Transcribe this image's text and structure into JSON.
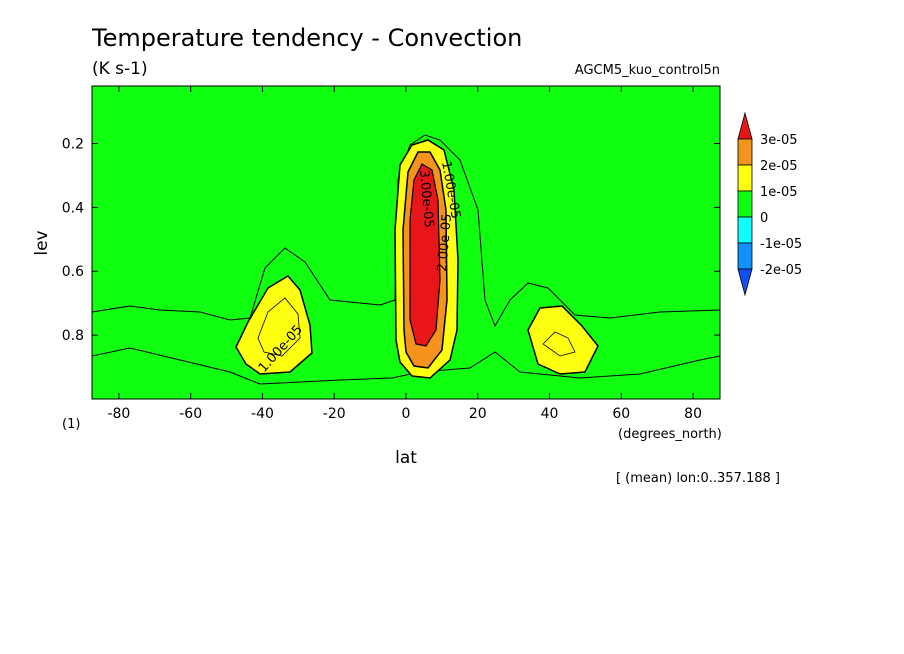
{
  "header": {
    "title": "Temperature tendency - Convection",
    "units": "(K s-1)",
    "experiment": "AGCM5_kuo_control5n"
  },
  "footer": {
    "mean_note": "[ (mean) lon:0..357.188 ]"
  },
  "chart_data": {
    "type": "heatmap",
    "title": "Temperature tendency - Convection",
    "xlabel": "lat",
    "xunits": "(degrees_north)",
    "ylabel": "lev",
    "yunits": "(1)",
    "xlim": [
      -87.5,
      87.5
    ],
    "ylim": [
      1.0,
      0.02
    ],
    "y_inverted": true,
    "x_ticks": [
      -80,
      -60,
      -40,
      -20,
      0,
      20,
      40,
      60,
      80
    ],
    "x_tick_labels": [
      "-80",
      "-60",
      "-40",
      "-20",
      "0",
      "20",
      "40",
      "60",
      "80"
    ],
    "y_ticks": [
      0.2,
      0.4,
      0.6,
      0.8
    ],
    "y_tick_labels": [
      "0.2",
      "0.4",
      "0.6",
      "0.8"
    ],
    "colorbar": {
      "levels": [
        3e-05,
        2e-05,
        1e-05,
        0,
        -1e-05,
        -2e-05
      ],
      "labels": [
        "3e-05",
        "2e-05",
        "1e-05",
        "0",
        "-1e-05",
        "-2e-05"
      ],
      "colors": [
        "#e8161a",
        "#f4941c",
        "#ffff10",
        "#10ff10",
        "#10ffff",
        "#1090ff",
        "#1050f0"
      ],
      "above_color": "#e8161a",
      "below_color": "#1050f0"
    },
    "background_color": "#10ff10",
    "features": [
      {
        "name": "equatorial-core",
        "lat_range": [
          -3,
          17
        ],
        "lev_range": [
          0.2,
          0.93
        ],
        "max_value": 3e-05,
        "contour_labels": [
          "1.00e-05",
          "2.00e-05",
          "3.00e-05"
        ]
      },
      {
        "name": "southern-cell",
        "lat_range": [
          -49,
          -27
        ],
        "lev_range": [
          0.6,
          0.9
        ],
        "max_value": 1e-05,
        "contour_labels": [
          "1.00e-05"
        ]
      },
      {
        "name": "northern-cell",
        "lat_range": [
          36,
          54
        ],
        "lev_range": [
          0.7,
          0.9
        ],
        "max_value": 1e-05,
        "contour_labels": []
      }
    ]
  }
}
